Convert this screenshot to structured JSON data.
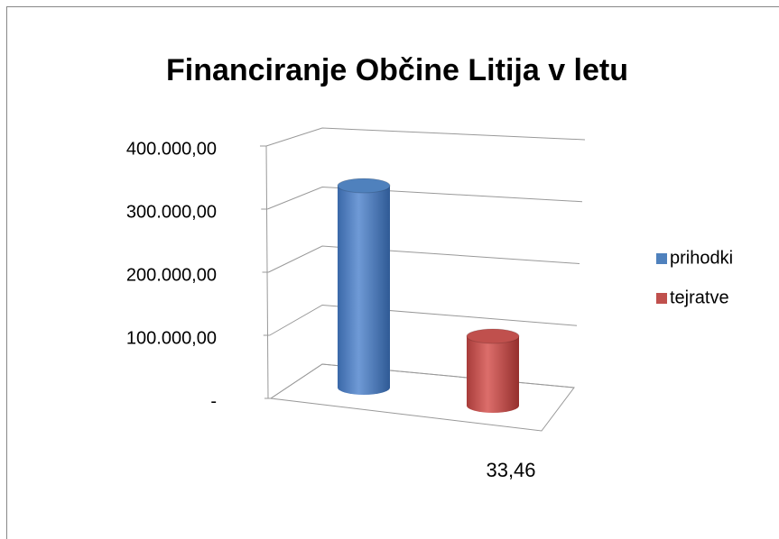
{
  "chart_data": {
    "type": "bar3d",
    "title": "Financiranje Občine Litija v letu",
    "categories": [
      "33,46"
    ],
    "series": [
      {
        "name": "prihodki",
        "color": "#4f81bd",
        "values": [
          320000
        ]
      },
      {
        "name": "tejratve",
        "color": "#c0504d",
        "values": [
          110000
        ]
      }
    ],
    "ylim": [
      0,
      400000
    ],
    "yticks": [
      {
        "value": 0,
        "label": "-"
      },
      {
        "value": 100000,
        "label": "100.000,00"
      },
      {
        "value": 200000,
        "label": "200.000,00"
      },
      {
        "value": 300000,
        "label": "300.000,00"
      },
      {
        "value": 400000,
        "label": "400.000,00"
      }
    ],
    "grid": true,
    "legend": "right"
  }
}
